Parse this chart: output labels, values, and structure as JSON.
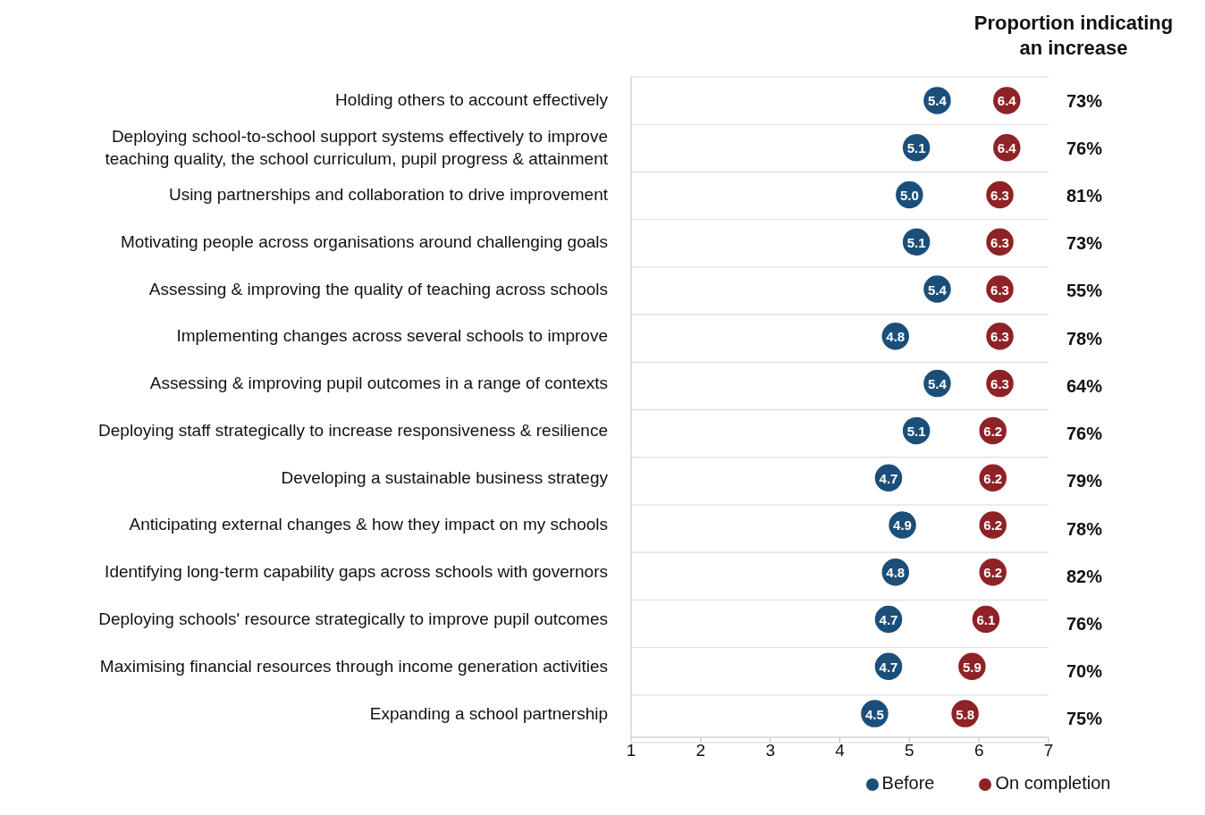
{
  "chart_data": {
    "type": "scatter",
    "orientation": "horizontal",
    "categories": [
      "Holding others to account effectively",
      "Deploying school-to-school support systems effectively to improve teaching quality, the school curriculum, pupil progress & attainment",
      "Using partnerships and collaboration to drive improvement",
      "Motivating people across organisations around challenging goals",
      "Assessing & improving the quality of teaching across schools",
      "Implementing changes across several schools to improve",
      "Assessing & improving pupil outcomes in a range of contexts",
      "Deploying staff strategically to increase responsiveness & resilience",
      "Developing a sustainable business strategy",
      "Anticipating external changes & how they impact on my schools",
      "Identifying long-term capability gaps across schools with governors",
      "Deploying schools' resource strategically to improve pupil outcomes",
      "Maximising financial resources through income generation activities",
      "Expanding a school partnership"
    ],
    "series": [
      {
        "name": "Before",
        "color": "#1b4f7a",
        "values": [
          5.4,
          5.1,
          5.0,
          5.1,
          5.4,
          4.8,
          5.4,
          5.1,
          4.7,
          4.9,
          4.8,
          4.7,
          4.7,
          4.5
        ],
        "value_labels": [
          "5.4",
          "5.1",
          "5.0",
          "5.1",
          "5.4",
          "4.8",
          "5.4",
          "5.1",
          "4.7",
          "4.9",
          "4.8",
          "4.7",
          "4.7",
          "4.5"
        ]
      },
      {
        "name": "On completion",
        "color": "#8e2226",
        "values": [
          6.4,
          6.4,
          6.3,
          6.3,
          6.3,
          6.3,
          6.3,
          6.2,
          6.2,
          6.2,
          6.2,
          6.1,
          5.9,
          5.8
        ],
        "value_labels": [
          "6.4",
          "6.4",
          "6.3",
          "6.3",
          "6.3",
          "6.3",
          "6.3",
          "6.2",
          "6.2",
          "6.2",
          "6.2",
          "6.1",
          "5.9",
          "5.8"
        ]
      }
    ],
    "xlim": [
      1,
      7
    ],
    "xticks": [
      1,
      2,
      3,
      4,
      5,
      6,
      7
    ],
    "grid": "y",
    "legend": "bottom",
    "marker": "circle",
    "annotations": [
      "Proportion indicating an increase",
      "73%",
      "76%",
      "81%",
      "73%",
      "55%",
      "78%",
      "64%",
      "76%",
      "79%",
      "78%",
      "82%",
      "76%",
      "70%",
      "75%"
    ]
  }
}
